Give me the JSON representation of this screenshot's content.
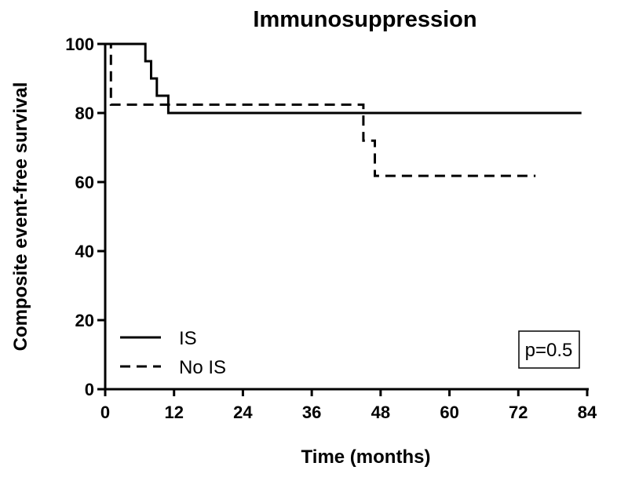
{
  "chart_data": {
    "type": "line",
    "subtype": "kaplan-meier step",
    "title": "Immunosuppression",
    "xlabel": "Time (months)",
    "ylabel": "Composite event-free survival",
    "xlim": [
      0,
      84
    ],
    "ylim": [
      0,
      100
    ],
    "x_ticks": [
      0,
      12,
      24,
      36,
      48,
      60,
      72,
      84
    ],
    "y_ticks": [
      0,
      20,
      40,
      60,
      80,
      100
    ],
    "grid": false,
    "legend_position": "bottom-left",
    "annotation": "p=0.5",
    "series": [
      {
        "name": "IS",
        "style": "solid",
        "color": "#000000",
        "points": [
          [
            0,
            100
          ],
          [
            7,
            100
          ],
          [
            7,
            95
          ],
          [
            8,
            95
          ],
          [
            8,
            90
          ],
          [
            9,
            90
          ],
          [
            9,
            85
          ],
          [
            11,
            85
          ],
          [
            11,
            80
          ],
          [
            83,
            80
          ]
        ]
      },
      {
        "name": "No IS",
        "style": "dashed",
        "color": "#000000",
        "points": [
          [
            0,
            100
          ],
          [
            1,
            100
          ],
          [
            1,
            82.4
          ],
          [
            45,
            82.4
          ],
          [
            45,
            72
          ],
          [
            47,
            72
          ],
          [
            47,
            61.8
          ],
          [
            75,
            61.8
          ]
        ]
      }
    ]
  }
}
